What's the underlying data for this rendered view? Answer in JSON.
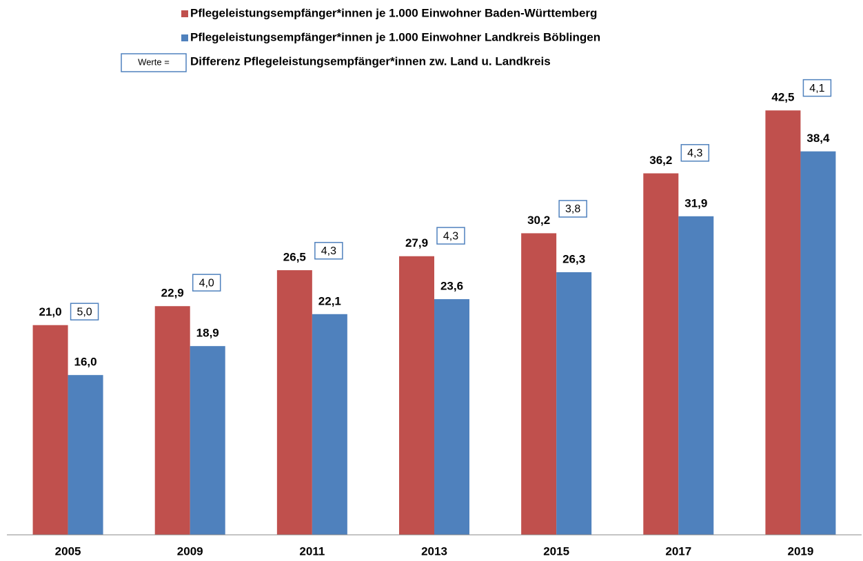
{
  "chart_data": {
    "type": "bar",
    "categories": [
      "2005",
      "2009",
      "2011",
      "2013",
      "2015",
      "2017",
      "2019"
    ],
    "series": [
      {
        "name": "Pflegeleistungsempfänger*innen je 1.000 Einwohner Baden-Württemberg",
        "color": "#c0504d",
        "values": [
          21.0,
          22.9,
          26.5,
          27.9,
          30.2,
          36.2,
          42.5
        ],
        "value_labels": [
          "21,0",
          "22,9",
          "26,5",
          "27,9",
          "30,2",
          "36,2",
          "42,5"
        ]
      },
      {
        "name": "Pflegeleistungsempfänger*innen je 1.000 Einwohner Landkreis Böblingen",
        "color": "#4f81bd",
        "values": [
          16.0,
          18.9,
          22.1,
          23.6,
          26.3,
          31.9,
          38.4
        ],
        "value_labels": [
          "16,0",
          "18,9",
          "22,1",
          "23,6",
          "26,3",
          "31,9",
          "38,4"
        ]
      }
    ],
    "differences": {
      "box_label": "Werte =",
      "name": "Differenz Pflegeleistungsempfänger*innen zw. Land u. Landkreis",
      "values": [
        5.0,
        4.0,
        4.3,
        4.3,
        3.8,
        4.3,
        4.1
      ],
      "value_labels": [
        "5,0",
        "4,0",
        "4,3",
        "4,3",
        "3,8",
        "4,3",
        "4,1"
      ]
    },
    "ylim": [
      0,
      45
    ]
  }
}
